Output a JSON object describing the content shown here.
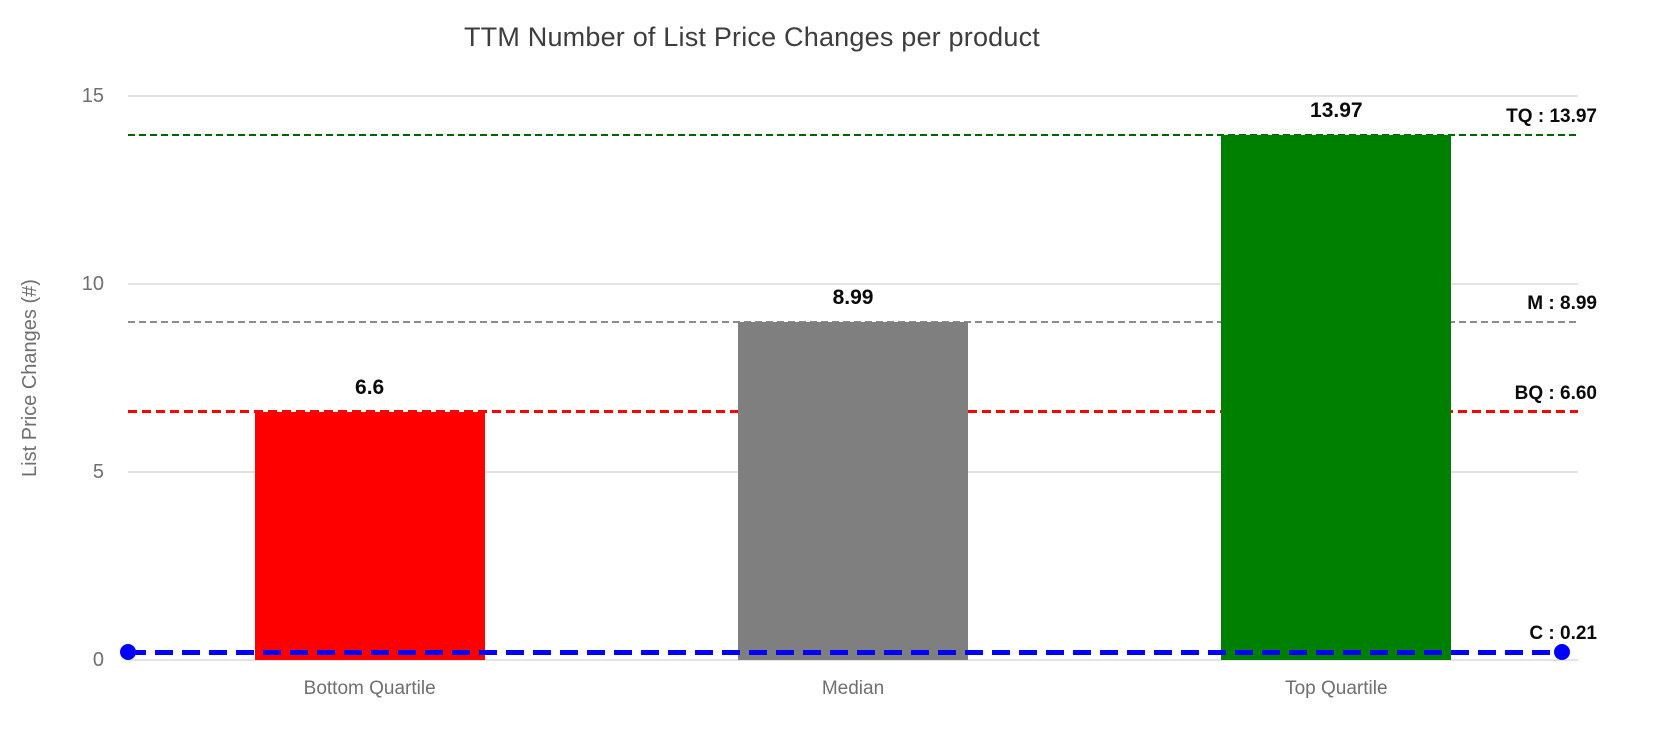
{
  "title": "TTM Number of List Price Changes per product",
  "colors": {
    "background": "#ffffff",
    "title_text": "#3d3d3d",
    "axis_text": "#6f6f6f",
    "gridline": "#e3e3e3",
    "value_label_text": "#0a0a0a",
    "bar_red": "#ff0000",
    "bar_gray": "#7f7f7f",
    "bar_green": "#008000",
    "ref_green": "#006400",
    "ref_gray": "#8c8c8c",
    "ref_red": "#ff0000",
    "ref_blue": "#0000ff"
  },
  "chart_data": {
    "type": "bar",
    "title": "TTM Number of List Price Changes per product",
    "xlabel": "",
    "ylabel": "List Price Changes (#)",
    "ylim": [
      0,
      15
    ],
    "yticks": [
      0,
      5,
      10,
      15
    ],
    "grid": true,
    "legend": "none",
    "categories": [
      "Bottom Quartile",
      "Median",
      "Top Quartile"
    ],
    "values": [
      6.6,
      8.99,
      13.97
    ],
    "bar_labels": [
      "6.6",
      "8.99",
      "13.97"
    ],
    "bar_colors": [
      "#ff0000",
      "#7f7f7f",
      "#008000"
    ],
    "reference_lines": [
      {
        "id": "tq",
        "label": "TQ : 13.97",
        "value": 13.97,
        "color": "#006400",
        "style": "dashed",
        "weight": "thin",
        "endpoints": false
      },
      {
        "id": "m",
        "label": "M : 8.99",
        "value": 8.99,
        "color": "#8c8c8c",
        "style": "dashed",
        "weight": "thin",
        "endpoints": false
      },
      {
        "id": "bq",
        "label": "BQ : 6.60",
        "value": 6.6,
        "color": "#ff0000",
        "style": "dashed",
        "weight": "medium",
        "endpoints": false
      },
      {
        "id": "c",
        "label": "C : 0.21",
        "value": 0.21,
        "color": "#0000ff",
        "style": "dashed",
        "weight": "thick",
        "endpoints": true
      }
    ]
  }
}
